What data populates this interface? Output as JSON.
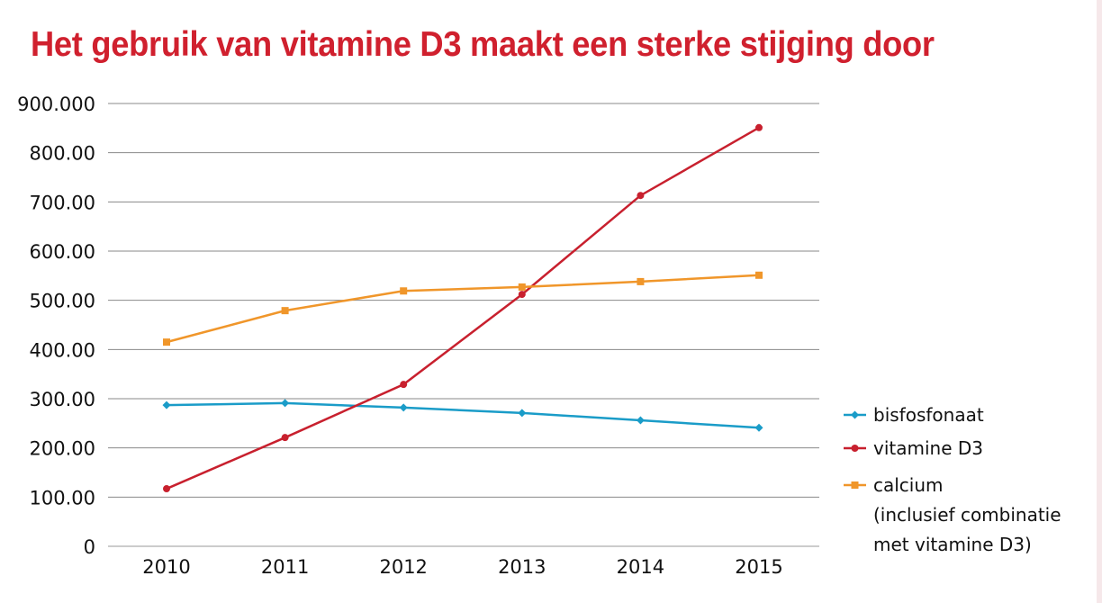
{
  "chart_data": {
    "type": "line",
    "title": "Het gebruik van vitamine D3 maakt een sterke stijging door",
    "xlabel": "",
    "ylabel": "",
    "categories": [
      "2010",
      "2011",
      "2012",
      "2013",
      "2014",
      "2015"
    ],
    "y_tick_labels": [
      "0",
      "100.00",
      "200.00",
      "300.00",
      "400.00",
      "500.00",
      "600.00",
      "700.00",
      "800.00",
      "900.000"
    ],
    "ylim": [
      0,
      900000
    ],
    "grid": true,
    "legend_position": "right",
    "series": [
      {
        "name": "bisfosfonaat",
        "color": "#1a9cc8",
        "marker": "diamond",
        "values": [
          287000,
          291000,
          282000,
          271000,
          256000,
          241000
        ]
      },
      {
        "name": "vitamine D3",
        "color": "#c8202e",
        "marker": "circle",
        "values": [
          117000,
          221000,
          329000,
          512000,
          713000,
          851000
        ]
      },
      {
        "name": "calcium",
        "name_lines": [
          "calcium",
          "(inclusief combinatie",
          "met vitamine D3)"
        ],
        "color": "#f0962a",
        "marker": "square",
        "values": [
          415000,
          479000,
          519000,
          527000,
          538000,
          551000
        ]
      }
    ]
  }
}
